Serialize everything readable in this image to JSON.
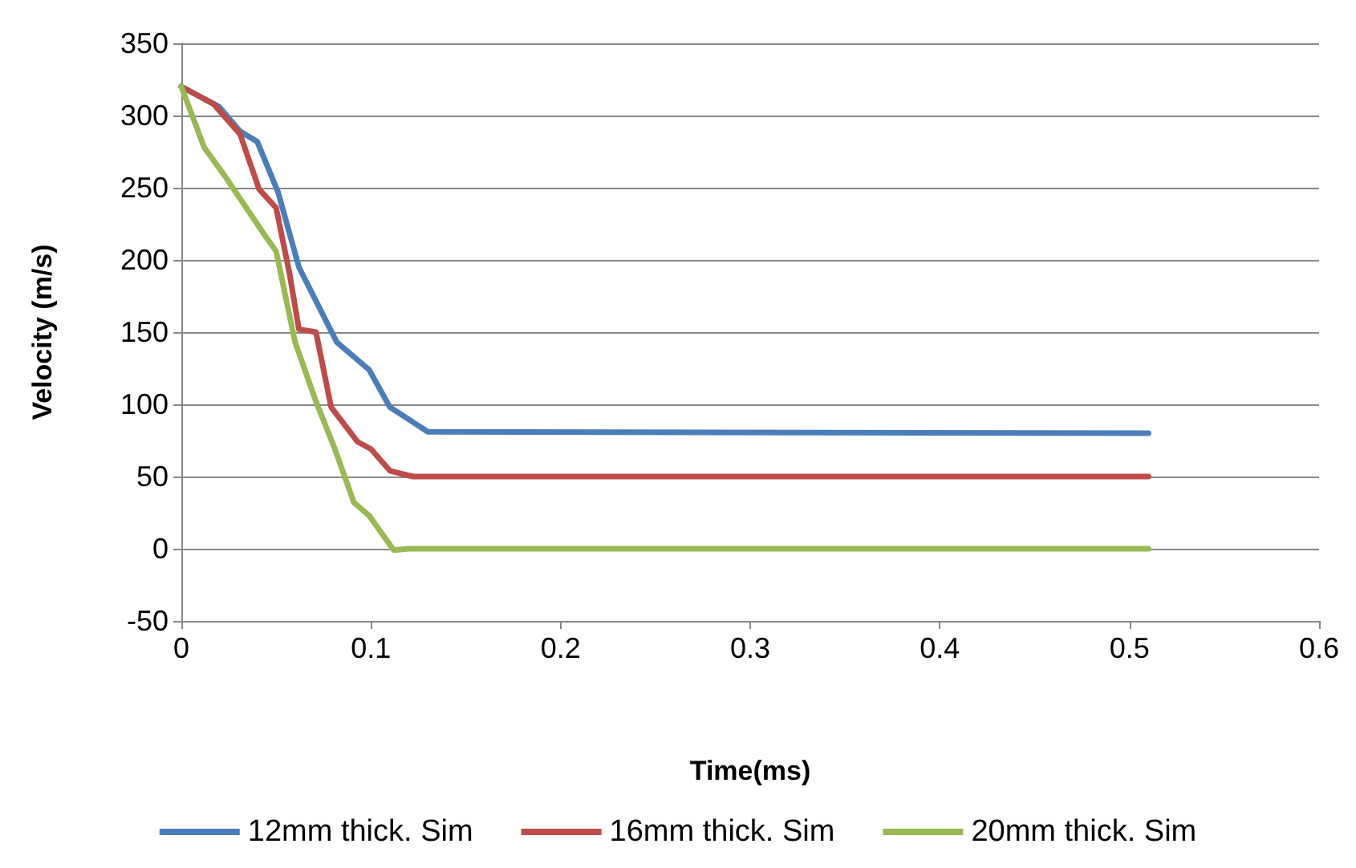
{
  "chart_data": {
    "type": "line",
    "xlabel": "Time(ms)",
    "ylabel": "Velocity (m/s)",
    "xlim": [
      0,
      0.6
    ],
    "xticks": [
      0,
      0.1,
      0.2,
      0.3,
      0.4,
      0.5,
      0.6
    ],
    "ylim": [
      -50,
      350
    ],
    "yticks": [
      -50,
      0,
      50,
      100,
      150,
      200,
      250,
      300,
      350
    ],
    "grid": "y",
    "legend": "bottom",
    "marker": "none",
    "line_style": "solid",
    "series": [
      {
        "name": "12mm thick. Sim",
        "color": "#4a7ebb",
        "x": [
          0,
          0.02,
          0.031,
          0.04,
          0.051,
          0.062,
          0.082,
          0.099,
          0.11,
          0.13,
          0.51
        ],
        "values": [
          320,
          306,
          289,
          282,
          247,
          195,
          143,
          124,
          98,
          81,
          80
        ]
      },
      {
        "name": "16mm thick. Sim",
        "color": "#be4b48",
        "x": [
          0,
          0.017,
          0.031,
          0.041,
          0.05,
          0.057,
          0.062,
          0.071,
          0.079,
          0.093,
          0.1,
          0.11,
          0.122,
          0.51
        ],
        "values": [
          320,
          308,
          287,
          249,
          236,
          191,
          152,
          150,
          98,
          74,
          69,
          54,
          50,
          50
        ]
      },
      {
        "name": "20mm thick. Sim",
        "color": "#98b954",
        "x": [
          0,
          0.012,
          0.023,
          0.043,
          0.05,
          0.06,
          0.071,
          0.081,
          0.091,
          0.099,
          0.112,
          0.12,
          0.51
        ],
        "values": [
          320,
          278,
          258,
          219,
          206,
          143,
          102,
          69,
          32,
          23,
          -1,
          0,
          0
        ]
      }
    ]
  }
}
